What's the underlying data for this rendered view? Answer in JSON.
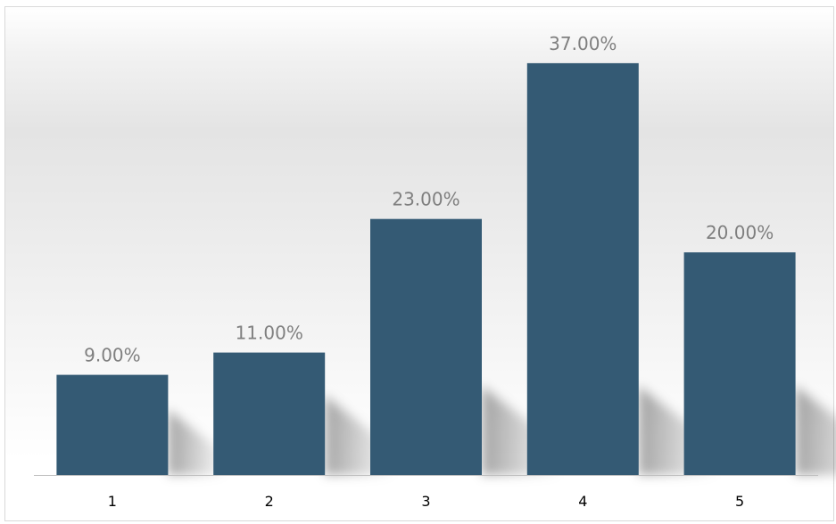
{
  "chart_data": {
    "type": "bar",
    "categories": [
      "1",
      "2",
      "3",
      "4",
      "5"
    ],
    "values": [
      9,
      11,
      23,
      37,
      20
    ],
    "value_labels": [
      "9.00%",
      "11.00%",
      "23.00%",
      "37.00%",
      "20.00%"
    ],
    "unit": "%",
    "title": "",
    "xlabel": "",
    "ylabel": "",
    "ylim": [
      0,
      40
    ],
    "grid": false,
    "legend": "none",
    "bar_color": "#345a74",
    "label_color": "#7f7f7f",
    "axis_color": "#bfbfbf"
  }
}
